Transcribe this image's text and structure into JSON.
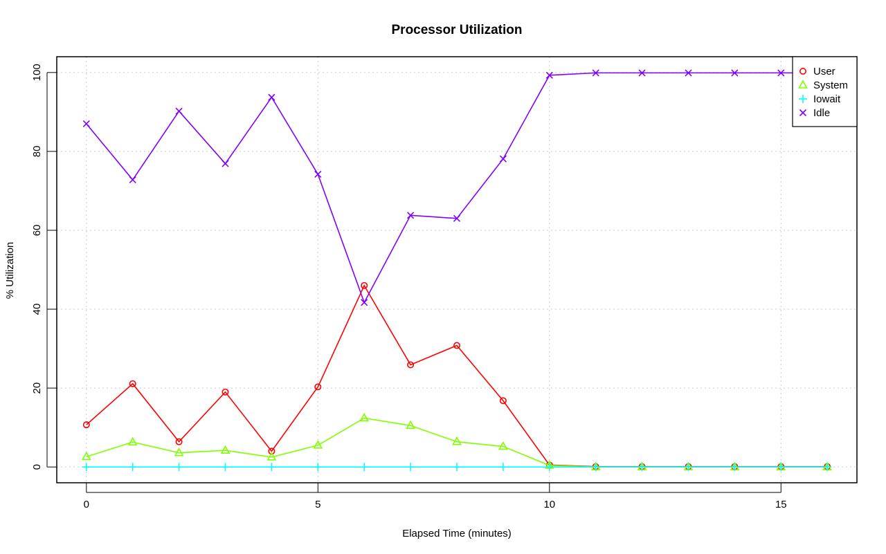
{
  "chart_data": {
    "type": "line",
    "title": "Processor Utilization",
    "xlabel": "Elapsed Time (minutes)",
    "ylabel": "% Utilization",
    "xlim": [
      -0.64,
      16.64
    ],
    "ylim": [
      -4,
      104
    ],
    "x_ticks": [
      0,
      5,
      10,
      15
    ],
    "y_ticks": [
      0,
      20,
      40,
      60,
      80,
      100
    ],
    "grid": true,
    "legend_position": "top-right",
    "x": [
      0,
      1,
      2,
      3,
      4,
      5,
      6,
      7,
      8,
      9,
      10,
      11,
      12,
      13,
      14,
      15,
      16
    ],
    "series": [
      {
        "name": "User",
        "color": "#ff0000",
        "marker": "circle",
        "values": [
          10.7,
          21.1,
          6.4,
          19.0,
          4.0,
          20.3,
          46.0,
          25.9,
          30.8,
          16.8,
          0.5,
          0.1,
          0.1,
          0.1,
          0.1,
          0.1,
          0.1
        ]
      },
      {
        "name": "System",
        "color": "#80ff00",
        "marker": "triangle",
        "values": [
          2.6,
          6.3,
          3.6,
          4.2,
          2.5,
          5.5,
          12.4,
          10.5,
          6.4,
          5.2,
          0.4,
          0.0,
          0.0,
          0.0,
          0.0,
          0.0,
          0.0
        ]
      },
      {
        "name": "Iowait",
        "color": "#00ffff",
        "marker": "plus",
        "values": [
          0,
          0,
          0,
          0,
          0,
          0,
          0,
          0,
          0,
          0,
          0,
          0,
          0,
          0,
          0,
          0,
          0
        ]
      },
      {
        "name": "Idle",
        "color": "#8000ff",
        "marker": "cross",
        "values": [
          87.0,
          72.8,
          90.2,
          76.9,
          93.7,
          74.2,
          41.7,
          63.8,
          63.0,
          78.1,
          99.3,
          99.9,
          99.9,
          99.9,
          99.9,
          99.9,
          99.9
        ]
      }
    ]
  }
}
